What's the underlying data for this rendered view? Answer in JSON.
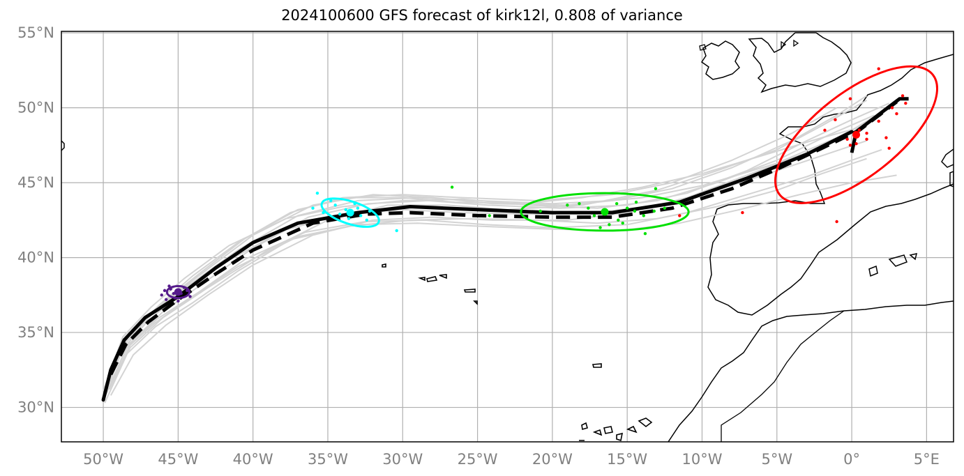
{
  "title": "2024100600 GFS forecast of kirk12l, 0.808 of variance",
  "map": {
    "lon_range": [
      -52.8,
      6.8
    ],
    "lat_range": [
      27.7,
      55.1
    ],
    "grid": true,
    "lon_ticks": [
      -50,
      -45,
      -40,
      -35,
      -30,
      -25,
      -20,
      -15,
      -10,
      -5,
      0,
      5
    ],
    "lat_ticks": [
      30,
      35,
      40,
      45,
      50,
      55
    ],
    "lon_tick_labels": [
      "50°W",
      "45°W",
      "40°W",
      "35°W",
      "30°W",
      "25°W",
      "20°W",
      "15°W",
      "10°W",
      "5°W",
      "0°",
      "5°E"
    ],
    "lat_tick_labels": [
      "30°N",
      "35°N",
      "40°N",
      "45°N",
      "50°N",
      "55°N"
    ]
  },
  "colors": {
    "ensemble": "#d3d3d3",
    "mean_track": "#000000",
    "grid": "#b0b0b0",
    "coast": "#000000",
    "tick_label": "#808080",
    "cluster_purple": "#551a8b",
    "cluster_cyan": "#00ffff",
    "cluster_green": "#00e000",
    "cluster_red": "#ff0000"
  },
  "chart_data": {
    "type": "map",
    "solid_track": [
      [
        -50,
        30.5
      ],
      [
        -49.5,
        32.5
      ],
      [
        -48.6,
        34.5
      ],
      [
        -47.2,
        36
      ],
      [
        -45,
        37.4
      ],
      [
        -42.5,
        39.3
      ],
      [
        -40,
        41
      ],
      [
        -37,
        42.3
      ],
      [
        -33,
        43
      ],
      [
        -29.5,
        43.4
      ],
      [
        -25,
        43.2
      ],
      [
        -20,
        43
      ],
      [
        -16,
        43
      ],
      [
        -11.5,
        43.7
      ],
      [
        -7,
        45.3
      ],
      [
        -3,
        46.9
      ],
      [
        0,
        48.4
      ]
    ],
    "dashed_track": [
      [
        -49.5,
        32.2
      ],
      [
        -48.5,
        34.2
      ],
      [
        -47,
        35.7
      ],
      [
        -45,
        37.2
      ],
      [
        -42.5,
        38.9
      ],
      [
        -40,
        40.5
      ],
      [
        -36,
        42.3
      ],
      [
        -32.5,
        42.9
      ],
      [
        -29.5,
        43
      ],
      [
        -25,
        42.8
      ],
      [
        -20,
        42.7
      ],
      [
        -16,
        42.7
      ],
      [
        -12,
        43.3
      ],
      [
        -8,
        44.6
      ],
      [
        -5,
        45.9
      ],
      [
        -2,
        47.3
      ],
      [
        0.5,
        48.5
      ],
      [
        3,
        50.4
      ]
    ],
    "red_spur": [
      [
        0,
        47
      ],
      [
        0.3,
        48.4
      ],
      [
        3.2,
        50.6
      ],
      [
        3.8,
        50.6
      ]
    ],
    "ensemble_tracks": [
      [
        [
          -50,
          30.5
        ],
        [
          -48.5,
          34.6
        ],
        [
          -46.5,
          36.5
        ],
        [
          -44,
          38.5
        ],
        [
          -40,
          41.5
        ],
        [
          -36,
          43.5
        ],
        [
          -32,
          44.2
        ],
        [
          -28,
          44
        ],
        [
          -24,
          43.6
        ],
        [
          -19,
          43.5
        ],
        [
          -14,
          44
        ],
        [
          -10,
          44.8
        ],
        [
          -5,
          46.3
        ],
        [
          -1,
          48
        ],
        [
          2,
          49.5
        ]
      ],
      [
        [
          -49.8,
          31
        ],
        [
          -48.2,
          34
        ],
        [
          -46,
          36
        ],
        [
          -43,
          38
        ],
        [
          -39,
          40.5
        ],
        [
          -35,
          42.5
        ],
        [
          -31,
          43.5
        ],
        [
          -27,
          43.5
        ],
        [
          -23,
          43.2
        ],
        [
          -18,
          43.5
        ],
        [
          -13,
          44.5
        ],
        [
          -9,
          45.8
        ],
        [
          -5,
          47.2
        ],
        [
          -2,
          48.8
        ],
        [
          1,
          50.5
        ]
      ],
      [
        [
          -49.5,
          30.8
        ],
        [
          -48,
          33.5
        ],
        [
          -45.8,
          35.5
        ],
        [
          -43,
          37.5
        ],
        [
          -40,
          39.5
        ],
        [
          -36,
          41.5
        ],
        [
          -32,
          42.5
        ],
        [
          -28,
          42.7
        ],
        [
          -24,
          42.5
        ],
        [
          -19,
          42.5
        ],
        [
          -15,
          43
        ],
        [
          -11,
          44
        ],
        [
          -7,
          45.5
        ],
        [
          -3,
          47
        ],
        [
          0,
          48.5
        ],
        [
          2.5,
          50
        ]
      ],
      [
        [
          -50,
          30.6
        ],
        [
          -48.6,
          34.2
        ],
        [
          -46.8,
          36.2
        ],
        [
          -44.5,
          38
        ],
        [
          -41,
          40.5
        ],
        [
          -37,
          42.8
        ],
        [
          -33,
          43.8
        ],
        [
          -29,
          44
        ],
        [
          -25,
          43.8
        ],
        [
          -20,
          43.6
        ],
        [
          -16,
          43.8
        ],
        [
          -12,
          44.6
        ],
        [
          -8,
          46
        ],
        [
          -4,
          47.8
        ],
        [
          -1,
          49.5
        ],
        [
          1,
          50.8
        ]
      ],
      [
        [
          -49.7,
          31.5
        ],
        [
          -48.3,
          34.8
        ],
        [
          -46.3,
          36.8
        ],
        [
          -44,
          38.8
        ],
        [
          -41,
          41
        ],
        [
          -37.5,
          43
        ],
        [
          -34,
          44
        ],
        [
          -30,
          44.2
        ],
        [
          -26,
          44
        ],
        [
          -21,
          43.8
        ],
        [
          -16,
          44.2
        ],
        [
          -12,
          45
        ],
        [
          -8,
          46.5
        ],
        [
          -4,
          48.3
        ],
        [
          -1,
          50
        ]
      ],
      [
        [
          -49.9,
          30.7
        ],
        [
          -48.4,
          34.1
        ],
        [
          -46.4,
          35.9
        ],
        [
          -43.6,
          37.7
        ],
        [
          -40.5,
          39.9
        ],
        [
          -36.5,
          41.7
        ],
        [
          -32.5,
          42.4
        ],
        [
          -28.5,
          42.5
        ],
        [
          -24.5,
          42.2
        ],
        [
          -20,
          42
        ],
        [
          -15,
          42.2
        ],
        [
          -11,
          43
        ],
        [
          -7,
          44.2
        ],
        [
          -3,
          45.4
        ],
        [
          0,
          46.5
        ],
        [
          2,
          47.2
        ]
      ],
      [
        [
          -50,
          30.4
        ],
        [
          -48.8,
          33.8
        ],
        [
          -47,
          35.8
        ],
        [
          -44.8,
          37.6
        ],
        [
          -42,
          39.6
        ],
        [
          -38,
          41.8
        ],
        [
          -34,
          42.9
        ],
        [
          -30,
          43.2
        ],
        [
          -26,
          43
        ],
        [
          -21,
          42.9
        ],
        [
          -17,
          43
        ],
        [
          -13,
          43.5
        ],
        [
          -9,
          44.5
        ],
        [
          -5,
          45.8
        ],
        [
          -2,
          46.8
        ],
        [
          1,
          47.8
        ]
      ],
      [
        [
          -49.6,
          31.2
        ],
        [
          -48.1,
          34.4
        ],
        [
          -46,
          36.4
        ],
        [
          -43.3,
          38.3
        ],
        [
          -40.2,
          40.5
        ],
        [
          -36.3,
          42.7
        ],
        [
          -32.3,
          43.6
        ],
        [
          -28.3,
          43.8
        ],
        [
          -24.3,
          43.5
        ],
        [
          -19.5,
          43.3
        ],
        [
          -15,
          43.5
        ],
        [
          -11,
          44.3
        ],
        [
          -7,
          45.8
        ],
        [
          -3,
          47.8
        ],
        [
          0,
          49.2
        ],
        [
          2.5,
          50.3
        ]
      ],
      [
        [
          -49.8,
          30.9
        ],
        [
          -48.5,
          33.9
        ],
        [
          -46.6,
          35.6
        ],
        [
          -44.2,
          37.3
        ],
        [
          -41,
          39.4
        ],
        [
          -37,
          41.4
        ],
        [
          -33,
          42.2
        ],
        [
          -29,
          42.3
        ],
        [
          -25,
          42.1
        ],
        [
          -20,
          41.9
        ],
        [
          -15.5,
          41.8
        ],
        [
          -11.5,
          42.3
        ],
        [
          -7.5,
          43.2
        ],
        [
          -3.5,
          44.2
        ],
        [
          0,
          45
        ],
        [
          3,
          45.5
        ]
      ],
      [
        [
          -50,
          31.1
        ],
        [
          -48.7,
          34.7
        ],
        [
          -46.8,
          36.7
        ],
        [
          -44.6,
          38.6
        ],
        [
          -41.6,
          40.8
        ],
        [
          -37.8,
          42.6
        ],
        [
          -34,
          43.4
        ],
        [
          -30,
          43.8
        ],
        [
          -26,
          43.9
        ],
        [
          -21.5,
          43.5
        ],
        [
          -17,
          43.3
        ],
        [
          -13,
          43.8
        ],
        [
          -9,
          45
        ],
        [
          -5,
          46.5
        ],
        [
          -1.5,
          48.2
        ],
        [
          1.5,
          49.5
        ]
      ],
      [
        [
          -49.4,
          31.8
        ],
        [
          -48,
          34.9
        ],
        [
          -46,
          37
        ],
        [
          -43.5,
          39
        ],
        [
          -40.5,
          41.3
        ],
        [
          -37,
          43.2
        ],
        [
          -33.5,
          44
        ],
        [
          -30,
          44
        ],
        [
          -26.5,
          43.7
        ],
        [
          -22,
          43.6
        ],
        [
          -18,
          44
        ],
        [
          -14,
          44.7
        ],
        [
          -10,
          45.6
        ],
        [
          -6,
          46.8
        ],
        [
          -2,
          48
        ],
        [
          1,
          48.8
        ]
      ],
      [
        [
          -49.9,
          30.3
        ],
        [
          -48.4,
          33.6
        ],
        [
          -46.5,
          35.4
        ],
        [
          -44,
          37
        ],
        [
          -41,
          39.1
        ],
        [
          -37.5,
          41.2
        ],
        [
          -33.5,
          42.1
        ],
        [
          -29.5,
          42.5
        ],
        [
          -25.5,
          42.6
        ],
        [
          -21,
          42.5
        ],
        [
          -17,
          42.3
        ],
        [
          -13,
          42.6
        ],
        [
          -9,
          43.4
        ],
        [
          -5,
          44.5
        ],
        [
          -2,
          45.6
        ],
        [
          1,
          46.6
        ]
      ]
    ],
    "clusters": [
      {
        "color": "purple",
        "center": [
          -45,
          37.7
        ],
        "ellipse_radii_deg": [
          0.75,
          0.4
        ],
        "ellipse_angle_deg": 0,
        "points": [
          [
            -45.5,
            37.9
          ],
          [
            -44.8,
            37.6
          ],
          [
            -45.2,
            37.3
          ],
          [
            -44.2,
            37.4
          ],
          [
            -46.1,
            37.5
          ],
          [
            -45.6,
            38.1
          ],
          [
            -44.6,
            38
          ],
          [
            -45,
            37.1
          ],
          [
            -45.9,
            37.8
          ],
          [
            -44.4,
            37.8
          ],
          [
            -45.3,
            37.6
          ],
          [
            -45.8,
            37.2
          ]
        ]
      },
      {
        "color": "cyan",
        "center": [
          -33.5,
          43.0
        ],
        "ellipse_radii_deg": [
          2.0,
          0.75
        ],
        "ellipse_angle_deg": -18,
        "points": [
          [
            -35.7,
            44.3
          ],
          [
            -34.5,
            43.5
          ],
          [
            -33.8,
            43.2
          ],
          [
            -33.2,
            43.6
          ],
          [
            -32.8,
            42.8
          ],
          [
            -32.4,
            42.5
          ],
          [
            -34.2,
            42.9
          ],
          [
            -35.3,
            43
          ],
          [
            -33,
            43.3
          ],
          [
            -34.8,
            43.8
          ],
          [
            -30.4,
            41.8
          ],
          [
            -32.2,
            43.1
          ],
          [
            -33.6,
            42.6
          ],
          [
            -36,
            43.3
          ]
        ]
      },
      {
        "color": "green",
        "center": [
          -16.5,
          43.05
        ],
        "ellipse_radii_deg": [
          5.6,
          1.25
        ],
        "ellipse_angle_deg": 0,
        "points": [
          [
            -26.7,
            44.7
          ],
          [
            -24.2,
            42.8
          ],
          [
            -20.8,
            43.1
          ],
          [
            -17.6,
            43.3
          ],
          [
            -16.6,
            43.1
          ],
          [
            -15.7,
            43.6
          ],
          [
            -15,
            43.3
          ],
          [
            -14.4,
            43.7
          ],
          [
            -13.9,
            42.8
          ],
          [
            -13.2,
            43.1
          ],
          [
            -12.5,
            43.3
          ],
          [
            -13.1,
            44.6
          ],
          [
            -16.2,
            42.2
          ],
          [
            -17.2,
            42.8
          ],
          [
            -15.6,
            42.5
          ],
          [
            -18.2,
            43.6
          ],
          [
            -14.5,
            43.1
          ],
          [
            -16.8,
            42
          ],
          [
            -13.8,
            41.6
          ],
          [
            -19,
            43.5
          ],
          [
            -15.3,
            42.3
          ]
        ]
      },
      {
        "color": "red",
        "center": [
          0.3,
          48.2
        ],
        "ellipse_radii_deg": [
          6.5,
          2.8
        ],
        "ellipse_angle_deg": 38,
        "points": [
          [
            1.8,
            52.6
          ],
          [
            -0.1,
            50.6
          ],
          [
            3.4,
            50.8
          ],
          [
            2.7,
            50
          ],
          [
            3,
            49.6
          ],
          [
            1.8,
            49.1
          ],
          [
            0.5,
            48.5
          ],
          [
            1,
            48.3
          ],
          [
            0.3,
            47.6
          ],
          [
            -0.3,
            47.9
          ],
          [
            1,
            47.9
          ],
          [
            2.3,
            48
          ],
          [
            2.5,
            47.3
          ],
          [
            -0.1,
            47.5
          ],
          [
            -1.8,
            48.5
          ],
          [
            -7.3,
            43
          ],
          [
            -1,
            42.4
          ],
          [
            -11.5,
            42.8
          ],
          [
            -1.1,
            49.2
          ],
          [
            3.6,
            50.3
          ]
        ]
      }
    ]
  }
}
